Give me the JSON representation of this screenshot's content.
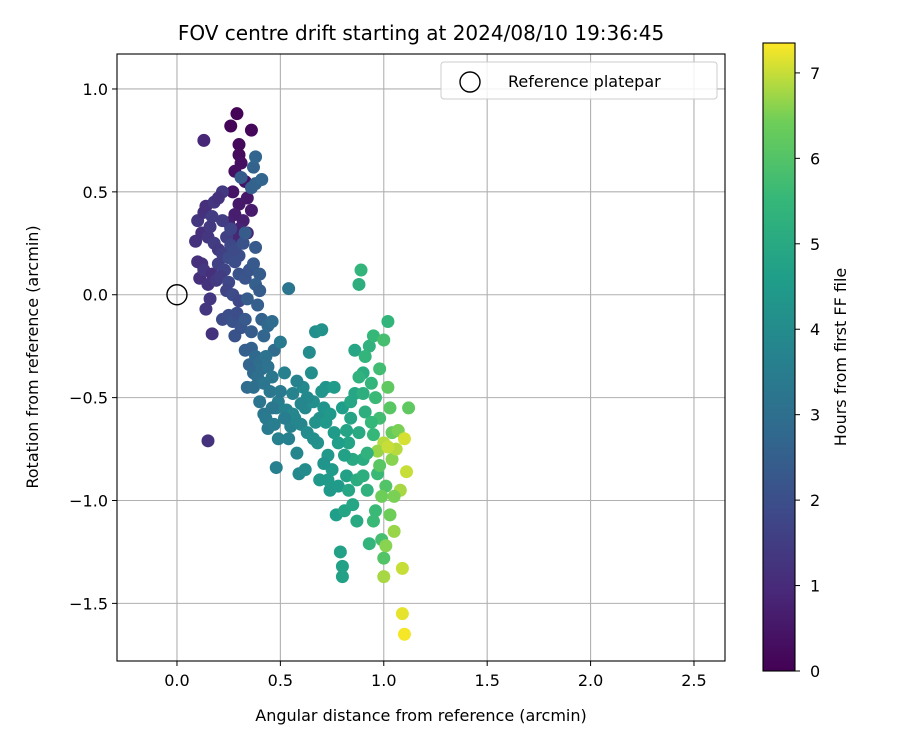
{
  "chart_data": {
    "type": "scatter",
    "title": "FOV centre drift starting at 2024/08/10 19:36:45",
    "xlabel": "Angular distance from reference (arcmin)",
    "ylabel": "Rotation from reference (arcmin)",
    "xlim": [
      -0.29,
      2.65
    ],
    "ylim": [
      -1.78,
      1.17
    ],
    "xticks": [
      0.0,
      0.5,
      1.0,
      1.5,
      2.0,
      2.5
    ],
    "xtick_labels": [
      "0.0",
      "0.5",
      "1.0",
      "1.5",
      "2.0",
      "2.5"
    ],
    "yticks": [
      -1.5,
      -1.0,
      -0.5,
      0.0,
      0.5,
      1.0
    ],
    "ytick_labels": [
      "−1.5",
      "−1.0",
      "−0.5",
      "0.0",
      "0.5",
      "1.0"
    ],
    "grid": true,
    "legend": {
      "label": "Reference platepar",
      "position": "top-right"
    },
    "reference_point": {
      "x": 0.0,
      "y": 0.0
    },
    "colorbar": {
      "label": "Hours from first FF file",
      "colormap": "viridis",
      "range": [
        0,
        7.35
      ],
      "ticks": [
        0,
        1,
        2,
        3,
        4,
        5,
        6,
        7
      ],
      "tick_labels": [
        "0",
        "1",
        "2",
        "3",
        "4",
        "5",
        "6",
        "7"
      ]
    },
    "points": [
      {
        "x": 0.29,
        "y": 0.88,
        "t": 0.05
      },
      {
        "x": 0.26,
        "y": 0.82,
        "t": 0.1
      },
      {
        "x": 0.36,
        "y": 0.8,
        "t": 0.15
      },
      {
        "x": 0.3,
        "y": 0.73,
        "t": 0.2
      },
      {
        "x": 0.3,
        "y": 0.68,
        "t": 0.25
      },
      {
        "x": 0.31,
        "y": 0.64,
        "t": 0.3
      },
      {
        "x": 0.28,
        "y": 0.6,
        "t": 0.35
      },
      {
        "x": 0.33,
        "y": 0.55,
        "t": 0.4
      },
      {
        "x": 0.27,
        "y": 0.5,
        "t": 0.45
      },
      {
        "x": 0.34,
        "y": 0.47,
        "t": 0.5
      },
      {
        "x": 0.3,
        "y": 0.44,
        "t": 0.55
      },
      {
        "x": 0.36,
        "y": 0.41,
        "t": 0.6
      },
      {
        "x": 0.28,
        "y": 0.39,
        "t": 0.65
      },
      {
        "x": 0.32,
        "y": 0.36,
        "t": 0.7
      },
      {
        "x": 0.25,
        "y": 0.35,
        "t": 0.75
      },
      {
        "x": 0.3,
        "y": 0.32,
        "t": 0.8
      },
      {
        "x": 0.34,
        "y": 0.3,
        "t": 0.85
      },
      {
        "x": 0.29,
        "y": 0.27,
        "t": 0.9
      },
      {
        "x": 0.13,
        "y": 0.75,
        "t": 0.9
      },
      {
        "x": 0.15,
        "y": -0.71,
        "t": 1.2
      },
      {
        "x": 0.17,
        "y": -0.19,
        "t": 1.2
      },
      {
        "x": 0.14,
        "y": -0.07,
        "t": 1.3
      },
      {
        "x": 0.16,
        "y": -0.02,
        "t": 1.3
      },
      {
        "x": 0.11,
        "y": 0.08,
        "t": 1.1
      },
      {
        "x": 0.12,
        "y": 0.15,
        "t": 1.2
      },
      {
        "x": 0.1,
        "y": 0.16,
        "t": 1.1
      },
      {
        "x": 0.13,
        "y": 0.12,
        "t": 1.3
      },
      {
        "x": 0.17,
        "y": 0.1,
        "t": 1.1
      },
      {
        "x": 0.15,
        "y": 0.05,
        "t": 1.2
      },
      {
        "x": 0.19,
        "y": 0.07,
        "t": 1.4
      },
      {
        "x": 0.09,
        "y": 0.26,
        "t": 1.2
      },
      {
        "x": 0.12,
        "y": 0.3,
        "t": 1.1
      },
      {
        "x": 0.1,
        "y": 0.36,
        "t": 1.3
      },
      {
        "x": 0.13,
        "y": 0.4,
        "t": 1.2
      },
      {
        "x": 0.14,
        "y": 0.43,
        "t": 1.1
      },
      {
        "x": 0.18,
        "y": 0.45,
        "t": 1.3
      },
      {
        "x": 0.22,
        "y": 0.5,
        "t": 1.4
      },
      {
        "x": 0.2,
        "y": 0.47,
        "t": 1.2
      },
      {
        "x": 0.17,
        "y": 0.38,
        "t": 1.5
      },
      {
        "x": 0.16,
        "y": 0.33,
        "t": 1.4
      },
      {
        "x": 0.15,
        "y": 0.28,
        "t": 1.3
      },
      {
        "x": 0.18,
        "y": 0.25,
        "t": 1.5
      },
      {
        "x": 0.2,
        "y": 0.22,
        "t": 1.4
      },
      {
        "x": 0.22,
        "y": 0.2,
        "t": 1.6
      },
      {
        "x": 0.2,
        "y": 0.15,
        "t": 1.6
      },
      {
        "x": 0.23,
        "y": 0.12,
        "t": 1.7
      },
      {
        "x": 0.21,
        "y": 0.09,
        "t": 1.5
      },
      {
        "x": 0.25,
        "y": 0.06,
        "t": 1.8
      },
      {
        "x": 0.24,
        "y": 0.02,
        "t": 1.7
      },
      {
        "x": 0.27,
        "y": 0.0,
        "t": 1.9
      },
      {
        "x": 0.3,
        "y": -0.03,
        "t": 1.8
      },
      {
        "x": 0.24,
        "y": 0.28,
        "t": 1.6
      },
      {
        "x": 0.26,
        "y": 0.32,
        "t": 1.7
      },
      {
        "x": 0.22,
        "y": 0.36,
        "t": 1.5
      },
      {
        "x": 0.26,
        "y": 0.24,
        "t": 1.8
      },
      {
        "x": 0.25,
        "y": 0.18,
        "t": 1.9
      },
      {
        "x": 0.28,
        "y": 0.16,
        "t": 2.0
      },
      {
        "x": 0.3,
        "y": 0.19,
        "t": 2.0
      },
      {
        "x": 0.28,
        "y": 0.22,
        "t": 1.9
      },
      {
        "x": 0.32,
        "y": 0.25,
        "t": 2.1
      },
      {
        "x": 0.3,
        "y": 0.1,
        "t": 2.1
      },
      {
        "x": 0.33,
        "y": 0.08,
        "t": 2.2
      },
      {
        "x": 0.35,
        "y": 0.12,
        "t": 2.2
      },
      {
        "x": 0.37,
        "y": 0.15,
        "t": 2.3
      },
      {
        "x": 0.38,
        "y": 0.23,
        "t": 2.3
      },
      {
        "x": 0.33,
        "y": 0.3,
        "t": 2.4
      },
      {
        "x": 0.36,
        "y": 0.52,
        "t": 2.5
      },
      {
        "x": 0.38,
        "y": 0.54,
        "t": 2.6
      },
      {
        "x": 0.41,
        "y": 0.56,
        "t": 2.7
      },
      {
        "x": 0.31,
        "y": 0.57,
        "t": 2.4
      },
      {
        "x": 0.37,
        "y": 0.62,
        "t": 2.6
      },
      {
        "x": 0.38,
        "y": 0.67,
        "t": 2.7
      },
      {
        "x": 0.4,
        "y": 0.1,
        "t": 2.4
      },
      {
        "x": 0.38,
        "y": 0.05,
        "t": 2.5
      },
      {
        "x": 0.4,
        "y": 0.02,
        "t": 2.4
      },
      {
        "x": 0.22,
        "y": -0.12,
        "t": 1.9
      },
      {
        "x": 0.25,
        "y": -0.1,
        "t": 2.0
      },
      {
        "x": 0.27,
        "y": -0.13,
        "t": 2.1
      },
      {
        "x": 0.29,
        "y": -0.09,
        "t": 2.0
      },
      {
        "x": 0.31,
        "y": -0.16,
        "t": 2.2
      },
      {
        "x": 0.28,
        "y": -0.2,
        "t": 2.1
      },
      {
        "x": 0.33,
        "y": -0.12,
        "t": 2.3
      },
      {
        "x": 0.36,
        "y": -0.18,
        "t": 2.4
      },
      {
        "x": 0.39,
        "y": -0.05,
        "t": 2.5
      },
      {
        "x": 0.34,
        "y": -0.02,
        "t": 2.4
      },
      {
        "x": 0.41,
        "y": -0.12,
        "t": 2.6
      },
      {
        "x": 0.42,
        "y": -0.2,
        "t": 2.7
      },
      {
        "x": 0.36,
        "y": -0.26,
        "t": 2.6
      },
      {
        "x": 0.33,
        "y": -0.27,
        "t": 2.5
      },
      {
        "x": 0.44,
        "y": -0.15,
        "t": 2.8
      },
      {
        "x": 0.46,
        "y": -0.13,
        "t": 2.9
      },
      {
        "x": 0.47,
        "y": -0.27,
        "t": 2.9
      },
      {
        "x": 0.35,
        "y": -0.34,
        "t": 2.7
      },
      {
        "x": 0.38,
        "y": -0.3,
        "t": 2.8
      },
      {
        "x": 0.4,
        "y": -0.33,
        "t": 2.9
      },
      {
        "x": 0.37,
        "y": -0.38,
        "t": 2.8
      },
      {
        "x": 0.39,
        "y": -0.4,
        "t": 3.0
      },
      {
        "x": 0.41,
        "y": -0.36,
        "t": 3.0
      },
      {
        "x": 0.43,
        "y": -0.3,
        "t": 3.1
      },
      {
        "x": 0.44,
        "y": -0.35,
        "t": 3.1
      },
      {
        "x": 0.34,
        "y": -0.45,
        "t": 2.9
      },
      {
        "x": 0.37,
        "y": -0.45,
        "t": 3.0
      },
      {
        "x": 0.42,
        "y": -0.43,
        "t": 3.2
      },
      {
        "x": 0.46,
        "y": -0.4,
        "t": 3.3
      },
      {
        "x": 0.45,
        "y": -0.47,
        "t": 3.3
      },
      {
        "x": 0.4,
        "y": -0.52,
        "t": 3.2
      },
      {
        "x": 0.42,
        "y": -0.58,
        "t": 3.3
      },
      {
        "x": 0.43,
        "y": -0.6,
        "t": 3.4
      },
      {
        "x": 0.44,
        "y": -0.65,
        "t": 3.4
      },
      {
        "x": 0.47,
        "y": -0.63,
        "t": 3.5
      },
      {
        "x": 0.48,
        "y": -0.55,
        "t": 3.5
      },
      {
        "x": 0.49,
        "y": -0.52,
        "t": 3.5
      },
      {
        "x": 0.49,
        "y": -0.7,
        "t": 3.6
      },
      {
        "x": 0.48,
        "y": -0.84,
        "t": 3.6
      },
      {
        "x": 0.5,
        "y": -0.23,
        "t": 3.4
      },
      {
        "x": 0.54,
        "y": 0.03,
        "t": 3.2
      },
      {
        "x": 0.52,
        "y": -0.38,
        "t": 3.6
      },
      {
        "x": 0.53,
        "y": -0.56,
        "t": 3.7
      },
      {
        "x": 0.55,
        "y": -0.64,
        "t": 3.7
      },
      {
        "x": 0.56,
        "y": -0.48,
        "t": 3.7
      },
      {
        "x": 0.57,
        "y": -0.6,
        "t": 3.8
      },
      {
        "x": 0.58,
        "y": -0.77,
        "t": 3.8
      },
      {
        "x": 0.59,
        "y": -0.87,
        "t": 3.9
      },
      {
        "x": 0.6,
        "y": -0.63,
        "t": 3.8
      },
      {
        "x": 0.61,
        "y": -0.45,
        "t": 3.9
      },
      {
        "x": 0.62,
        "y": -0.55,
        "t": 3.9
      },
      {
        "x": 0.62,
        "y": -0.85,
        "t": 4.0
      },
      {
        "x": 0.63,
        "y": -0.67,
        "t": 4.0
      },
      {
        "x": 0.64,
        "y": -0.28,
        "t": 4.0
      },
      {
        "x": 0.65,
        "y": -0.38,
        "t": 4.1
      },
      {
        "x": 0.66,
        "y": -0.52,
        "t": 4.1
      },
      {
        "x": 0.67,
        "y": -0.18,
        "t": 4.1
      },
      {
        "x": 0.67,
        "y": -0.62,
        "t": 4.2
      },
      {
        "x": 0.68,
        "y": -0.72,
        "t": 4.2
      },
      {
        "x": 0.69,
        "y": -0.6,
        "t": 4.2
      },
      {
        "x": 0.7,
        "y": -0.17,
        "t": 4.2
      },
      {
        "x": 0.7,
        "y": -0.47,
        "t": 4.3
      },
      {
        "x": 0.71,
        "y": -0.55,
        "t": 4.3
      },
      {
        "x": 0.72,
        "y": -0.45,
        "t": 4.3
      },
      {
        "x": 0.72,
        "y": -0.62,
        "t": 4.4
      },
      {
        "x": 0.73,
        "y": -0.78,
        "t": 4.4
      },
      {
        "x": 0.74,
        "y": -0.95,
        "t": 4.4
      },
      {
        "x": 0.75,
        "y": -0.85,
        "t": 4.5
      },
      {
        "x": 0.76,
        "y": -0.67,
        "t": 4.5
      },
      {
        "x": 0.77,
        "y": -1.07,
        "t": 4.6
      },
      {
        "x": 0.78,
        "y": -0.93,
        "t": 4.5
      },
      {
        "x": 0.79,
        "y": -1.25,
        "t": 4.7
      },
      {
        "x": 0.8,
        "y": -0.55,
        "t": 4.6
      },
      {
        "x": 0.8,
        "y": -1.32,
        "t": 4.7
      },
      {
        "x": 0.8,
        "y": -1.37,
        "t": 4.7
      },
      {
        "x": 0.81,
        "y": -1.05,
        "t": 4.8
      },
      {
        "x": 0.82,
        "y": -0.88,
        "t": 4.7
      },
      {
        "x": 0.83,
        "y": -0.72,
        "t": 4.8
      },
      {
        "x": 0.84,
        "y": -0.6,
        "t": 4.8
      },
      {
        "x": 0.85,
        "y": -1.02,
        "t": 4.9
      },
      {
        "x": 0.86,
        "y": -0.27,
        "t": 4.9
      },
      {
        "x": 0.86,
        "y": -0.48,
        "t": 4.9
      },
      {
        "x": 0.87,
        "y": -1.1,
        "t": 5.0
      },
      {
        "x": 0.88,
        "y": -0.67,
        "t": 5.0
      },
      {
        "x": 0.88,
        "y": 0.05,
        "t": 5.2
      },
      {
        "x": 0.89,
        "y": 0.12,
        "t": 5.4
      },
      {
        "x": 0.9,
        "y": -0.8,
        "t": 5.1
      },
      {
        "x": 0.9,
        "y": -0.38,
        "t": 5.1
      },
      {
        "x": 0.91,
        "y": -0.57,
        "t": 5.2
      },
      {
        "x": 0.92,
        "y": -0.95,
        "t": 5.3
      },
      {
        "x": 0.93,
        "y": -1.21,
        "t": 5.4
      },
      {
        "x": 0.93,
        "y": -0.25,
        "t": 5.3
      },
      {
        "x": 0.94,
        "y": -0.43,
        "t": 5.4
      },
      {
        "x": 0.95,
        "y": -0.2,
        "t": 5.5
      },
      {
        "x": 0.95,
        "y": -0.68,
        "t": 5.5
      },
      {
        "x": 0.96,
        "y": -1.05,
        "t": 5.6
      },
      {
        "x": 0.97,
        "y": -0.87,
        "t": 5.6
      },
      {
        "x": 0.98,
        "y": -0.6,
        "t": 5.7
      },
      {
        "x": 0.98,
        "y": -0.36,
        "t": 5.7
      },
      {
        "x": 0.99,
        "y": -1.19,
        "t": 5.8
      },
      {
        "x": 1.0,
        "y": -0.22,
        "t": 5.8
      },
      {
        "x": 1.0,
        "y": -1.28,
        "t": 6.0
      },
      {
        "x": 1.0,
        "y": -1.37,
        "t": 6.8
      },
      {
        "x": 1.01,
        "y": -0.93,
        "t": 6.0
      },
      {
        "x": 1.02,
        "y": -0.45,
        "t": 6.2
      },
      {
        "x": 1.02,
        "y": -0.13,
        "t": 5.4
      },
      {
        "x": 1.03,
        "y": -1.07,
        "t": 6.4
      },
      {
        "x": 1.04,
        "y": -0.67,
        "t": 6.3
      },
      {
        "x": 1.04,
        "y": -0.8,
        "t": 6.6
      },
      {
        "x": 1.05,
        "y": -1.15,
        "t": 6.7
      },
      {
        "x": 1.06,
        "y": -0.75,
        "t": 6.9
      },
      {
        "x": 1.07,
        "y": -0.66,
        "t": 6.5
      },
      {
        "x": 1.08,
        "y": -0.95,
        "t": 6.8
      },
      {
        "x": 1.09,
        "y": -1.33,
        "t": 7.0
      },
      {
        "x": 1.09,
        "y": -1.55,
        "t": 7.2
      },
      {
        "x": 1.1,
        "y": -1.65,
        "t": 7.3
      },
      {
        "x": 1.1,
        "y": -0.7,
        "t": 7.1
      },
      {
        "x": 1.11,
        "y": -0.86,
        "t": 7.0
      },
      {
        "x": 1.12,
        "y": -0.55,
        "t": 6.2
      },
      {
        "x": 1.0,
        "y": -0.72,
        "t": 6.9
      },
      {
        "x": 0.97,
        "y": -0.76,
        "t": 6.7
      },
      {
        "x": 0.99,
        "y": -0.98,
        "t": 6.4
      },
      {
        "x": 1.02,
        "y": -0.74,
        "t": 7.0
      },
      {
        "x": 0.85,
        "y": -0.8,
        "t": 5.0
      },
      {
        "x": 0.83,
        "y": -0.95,
        "t": 4.9
      },
      {
        "x": 0.87,
        "y": -0.9,
        "t": 5.1
      },
      {
        "x": 0.84,
        "y": -0.52,
        "t": 4.9
      },
      {
        "x": 0.88,
        "y": -0.4,
        "t": 5.3
      },
      {
        "x": 0.91,
        "y": -0.3,
        "t": 5.4
      },
      {
        "x": 0.76,
        "y": -0.45,
        "t": 4.5
      },
      {
        "x": 0.74,
        "y": -0.58,
        "t": 4.4
      },
      {
        "x": 0.78,
        "y": -0.72,
        "t": 4.6
      },
      {
        "x": 0.73,
        "y": -0.9,
        "t": 4.5
      },
      {
        "x": 0.71,
        "y": -0.82,
        "t": 4.3
      },
      {
        "x": 0.69,
        "y": -0.9,
        "t": 4.4
      },
      {
        "x": 0.66,
        "y": -0.7,
        "t": 4.1
      },
      {
        "x": 0.63,
        "y": -0.5,
        "t": 3.9
      },
      {
        "x": 0.6,
        "y": -0.53,
        "t": 3.8
      },
      {
        "x": 0.58,
        "y": -0.42,
        "t": 3.7
      },
      {
        "x": 0.56,
        "y": -0.58,
        "t": 3.8
      },
      {
        "x": 0.54,
        "y": -0.7,
        "t": 3.6
      },
      {
        "x": 0.52,
        "y": -0.6,
        "t": 3.5
      },
      {
        "x": 0.5,
        "y": -0.47,
        "t": 3.4
      },
      {
        "x": 0.46,
        "y": -0.55,
        "t": 3.3
      },
      {
        "x": 0.96,
        "y": -0.5,
        "t": 5.6
      },
      {
        "x": 0.94,
        "y": -0.62,
        "t": 5.5
      },
      {
        "x": 0.92,
        "y": -0.77,
        "t": 5.3
      },
      {
        "x": 0.9,
        "y": -0.88,
        "t": 5.2
      },
      {
        "x": 0.95,
        "y": -1.1,
        "t": 5.6
      },
      {
        "x": 1.01,
        "y": -1.22,
        "t": 6.6
      },
      {
        "x": 1.03,
        "y": -0.55,
        "t": 6.1
      },
      {
        "x": 1.05,
        "y": -0.98,
        "t": 6.5
      },
      {
        "x": 0.98,
        "y": -0.83,
        "t": 6.1
      },
      {
        "x": 0.9,
        "y": -0.48,
        "t": 5.2
      },
      {
        "x": 0.82,
        "y": -0.66,
        "t": 4.8
      },
      {
        "x": 0.81,
        "y": -0.78,
        "t": 4.7
      }
    ]
  }
}
